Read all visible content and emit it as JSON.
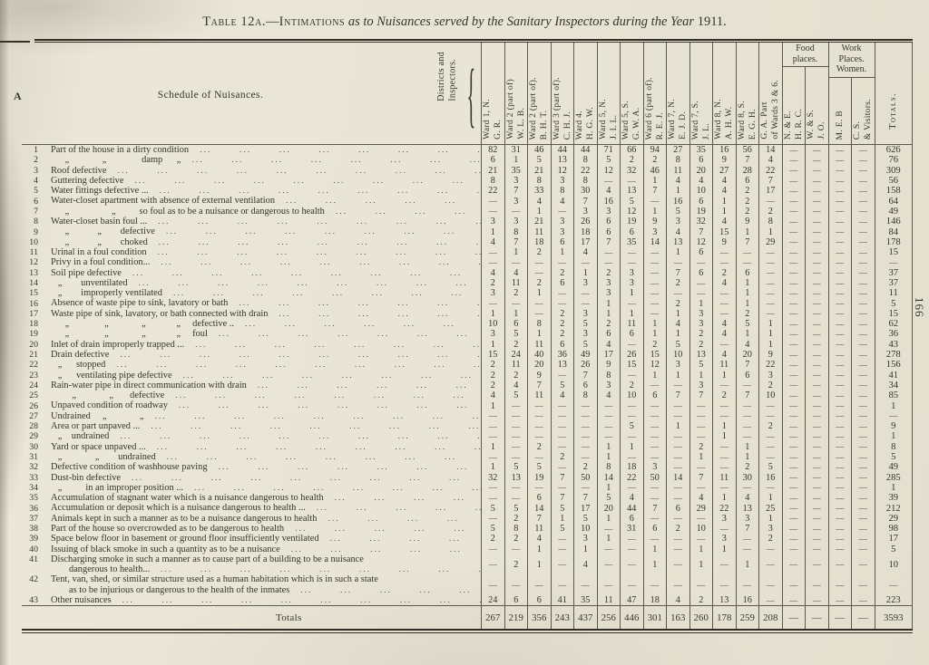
{
  "page": {
    "margin_letter": "A",
    "page_number": "166",
    "leader_unit": "..."
  },
  "title": {
    "table_no": "Table 12a.",
    "dash": "—",
    "subject": "Intimations",
    "description": "as to Nuisances served by the Sanitary Inspectors during the Year",
    "year": "1911."
  },
  "table": {
    "schedule_header": "Schedule of Nuisances.",
    "districts_header": "Districts and\nInspectors.",
    "brace_glyph": "{",
    "group_headers": {
      "food": "Food places.",
      "work": "Work\nPlaces.\nWomen."
    },
    "totals_header": "Totals.",
    "columns": [
      {
        "lines": [
          "Ward 1, N.",
          "G. R."
        ]
      },
      {
        "lines": [
          "Ward 2 (part of)",
          "W. L. B."
        ]
      },
      {
        "lines": [
          "Ward 2 (part of).",
          "B. H. T."
        ]
      },
      {
        "lines": [
          "Ward 3 (part of).",
          "C. H. J."
        ]
      },
      {
        "lines": [
          "Ward 4.",
          "H. G. W."
        ]
      },
      {
        "lines": [
          "Ward 5, N.",
          "J. I. L."
        ]
      },
      {
        "lines": [
          "Ward 5, S.",
          "G. W. A."
        ]
      },
      {
        "lines": [
          "Ward 6 (part of).",
          "R. E. J."
        ]
      },
      {
        "lines": [
          "Ward 7, N.",
          "E. J. D."
        ]
      },
      {
        "lines": [
          "Ward 7, S.",
          "J. L."
        ]
      },
      {
        "lines": [
          "Ward 8, N.",
          "A. H. W."
        ]
      },
      {
        "lines": [
          "Ward 8, S.",
          "E. G. H."
        ]
      },
      {
        "lines": [
          "G. A. Part",
          "of Wards 3 & 6."
        ]
      },
      {
        "lines": [
          "N. & E.",
          "H. R. C."
        ]
      },
      {
        "lines": [
          "W. & S.",
          "J. O."
        ]
      },
      {
        "lines": [
          "M. E. B"
        ]
      },
      {
        "lines": [
          "C. S.",
          "& Visitors."
        ]
      }
    ],
    "rows": [
      {
        "n": "1",
        "label": "Part of the house in a dirty condition",
        "values": [
          "82",
          "31",
          "46",
          "44",
          "44",
          "71",
          "66",
          "94",
          "27",
          "35",
          "16",
          "56",
          "14",
          "—",
          "—",
          "—",
          "—",
          "626"
        ]
      },
      {
        "n": "2",
        "label": "      „              „               damp      „",
        "values": [
          "6",
          "1",
          "5",
          "13",
          "8",
          "5",
          "2",
          "2",
          "8",
          "6",
          "9",
          "7",
          "4",
          "—",
          "—",
          "—",
          "—",
          "76"
        ]
      },
      {
        "n": "3",
        "label": "Roof defective",
        "values": [
          "21",
          "35",
          "21",
          "12",
          "22",
          "12",
          "32",
          "46",
          "11",
          "20",
          "27",
          "28",
          "22",
          "—",
          "—",
          "—",
          "—",
          "309"
        ]
      },
      {
        "n": "4",
        "label": "Guttering defective",
        "values": [
          "8",
          "3",
          "8",
          "3",
          "8",
          "—",
          "—",
          "1",
          "4",
          "4",
          "4",
          "6",
          "7",
          "—",
          "—",
          "—",
          "—",
          "56"
        ]
      },
      {
        "n": "5",
        "label": "Water fittings defective ...",
        "values": [
          "22",
          "7",
          "33",
          "8",
          "30",
          "4",
          "13",
          "7",
          "1",
          "10",
          "4",
          "2",
          "17",
          "—",
          "—",
          "—",
          "—",
          "158"
        ]
      },
      {
        "n": "6",
        "label": "Water-closet apartment with absence of external ventilation",
        "values": [
          "—",
          "3",
          "4",
          "4",
          "7",
          "16",
          "5",
          "—",
          "16",
          "6",
          "1",
          "2",
          "—",
          "—",
          "—",
          "—",
          "—",
          "64"
        ]
      },
      {
        "n": "7",
        "label": "      „                  „          so foul as to be a nuisance or dangerous to health",
        "values": [
          "—",
          "—",
          "1",
          "—",
          "3",
          "3",
          "12",
          "1",
          "5",
          "19",
          "1",
          "2",
          "2",
          "—",
          "—",
          "—",
          "—",
          "49"
        ]
      },
      {
        "n": "8",
        "label": "Water-closet basin foul ...",
        "values": [
          "3",
          "3",
          "21",
          "3",
          "26",
          "6",
          "19",
          "9",
          "3",
          "32",
          "4",
          "9",
          "8",
          "—",
          "—",
          "—",
          "—",
          "146"
        ]
      },
      {
        "n": "9",
        "label": "      „            „        defective",
        "values": [
          "1",
          "8",
          "11",
          "3",
          "18",
          "6",
          "6",
          "3",
          "4",
          "7",
          "15",
          "1",
          "1",
          "—",
          "—",
          "—",
          "—",
          "84"
        ]
      },
      {
        "n": "10",
        "label": "      „            „        choked",
        "values": [
          "4",
          "7",
          "18",
          "6",
          "17",
          "7",
          "35",
          "14",
          "13",
          "12",
          "9",
          "7",
          "29",
          "—",
          "—",
          "—",
          "—",
          "178"
        ]
      },
      {
        "n": "11",
        "label": "Urinal in a foul condition",
        "values": [
          "—",
          "1",
          "2",
          "1",
          "4",
          "—",
          "—",
          "—",
          "1",
          "6",
          "—",
          "—",
          "—",
          "—",
          "—",
          "—",
          "—",
          "15"
        ]
      },
      {
        "n": "12",
        "label": "Privy in a foul condition...",
        "values": [
          "—",
          "—",
          "—",
          "—",
          "—",
          "—",
          "—",
          "—",
          "—",
          "—",
          "—",
          "—",
          "—",
          "—",
          "—",
          "—",
          "—",
          "—"
        ]
      },
      {
        "n": "13",
        "label": "Soil pipe defective",
        "values": [
          "4",
          "4",
          "—",
          "2",
          "1",
          "2",
          "3",
          "—",
          "7",
          "6",
          "2",
          "6",
          "—",
          "—",
          "—",
          "—",
          "—",
          "37"
        ]
      },
      {
        "n": "14",
        "label": "   „        unventilated",
        "values": [
          "2",
          "11",
          "2",
          "6",
          "3",
          "3",
          "3",
          "—",
          "2",
          "—",
          "4",
          "1",
          "—",
          "—",
          "—",
          "—",
          "—",
          "37"
        ]
      },
      {
        "n": "15",
        "label": "   „        improperly ventilated",
        "values": [
          "3",
          "2",
          "1",
          "—",
          "—",
          "3",
          "1",
          "—",
          "—",
          "—",
          "—",
          "1",
          "—",
          "—",
          "—",
          "—",
          "—",
          "11"
        ]
      },
      {
        "n": "16",
        "label": "Absence of waste pipe to sink, lavatory or bath",
        "values": [
          "—",
          "—",
          "—",
          "—",
          "—",
          "1",
          "—",
          "—",
          "2",
          "1",
          "—",
          "1",
          "—",
          "—",
          "—",
          "—",
          "—",
          "5"
        ]
      },
      {
        "n": "17",
        "label": "Waste pipe of sink, lavatory, or bath connected with drain",
        "values": [
          "1",
          "1",
          "—",
          "2",
          "3",
          "1",
          "1",
          "—",
          "1",
          "3",
          "—",
          "2",
          "—",
          "—",
          "—",
          "—",
          "—",
          "15"
        ]
      },
      {
        "n": "18",
        "label": "      „               „              „             „     defective ..",
        "values": [
          "10",
          "6",
          "8",
          "2",
          "5",
          "2",
          "11",
          "1",
          "4",
          "3",
          "4",
          "5",
          "1",
          "—",
          "—",
          "—",
          "—",
          "62"
        ]
      },
      {
        "n": "19",
        "label": "      „               „              „             „     foul",
        "values": [
          "3",
          "5",
          "1",
          "2",
          "3",
          "6",
          "6",
          "1",
          "1",
          "2",
          "4",
          "1",
          "1",
          "—",
          "—",
          "—",
          "—",
          "36"
        ]
      },
      {
        "n": "20",
        "label": "Inlet of drain improperly trapped ...",
        "values": [
          "1",
          "2",
          "11",
          "6",
          "5",
          "4",
          "—",
          "2",
          "5",
          "2",
          "—",
          "4",
          "1",
          "—",
          "—",
          "—",
          "—",
          "43"
        ]
      },
      {
        "n": "21",
        "label": "Drain defective",
        "values": [
          "15",
          "24",
          "40",
          "36",
          "49",
          "17",
          "26",
          "15",
          "10",
          "13",
          "4",
          "20",
          "9",
          "—",
          "—",
          "—",
          "—",
          "278"
        ]
      },
      {
        "n": "22",
        "label": "   „      stopped",
        "values": [
          "2",
          "11",
          "20",
          "13",
          "26",
          "9",
          "15",
          "12",
          "3",
          "5",
          "11",
          "7",
          "22",
          "—",
          "—",
          "—",
          "—",
          "156"
        ]
      },
      {
        "n": "23",
        "label": "   „      ventilating pipe defective",
        "values": [
          "2",
          "2",
          "9",
          "—",
          "7",
          "8",
          "—",
          "1",
          "1",
          "1",
          "1",
          "6",
          "3",
          "—",
          "—",
          "—",
          "—",
          "41"
        ]
      },
      {
        "n": "24",
        "label": "Rain-water pipe in direct communication with drain",
        "values": [
          "2",
          "4",
          "7",
          "5",
          "6",
          "3",
          "2",
          "—",
          "—",
          "3",
          "—",
          "—",
          "2",
          "—",
          "—",
          "—",
          "—",
          "34"
        ]
      },
      {
        "n": "25",
        "label": "         „              „       defective",
        "values": [
          "4",
          "5",
          "11",
          "4",
          "8",
          "4",
          "10",
          "6",
          "7",
          "7",
          "2",
          "7",
          "10",
          "—",
          "—",
          "—",
          "—",
          "85"
        ]
      },
      {
        "n": "26",
        "label": "Unpaved condition of roadway",
        "values": [
          "1",
          "—",
          "—",
          "—",
          "—",
          "—",
          "—",
          "—",
          "—",
          "—",
          "—",
          "—",
          "—",
          "—",
          "—",
          "—",
          "—",
          "1"
        ]
      },
      {
        "n": "27",
        "label": "Undrained     „              „",
        "values": [
          "—",
          "—",
          "—",
          "—",
          "—",
          "—",
          "—",
          "—",
          "—",
          "—",
          "—",
          "—",
          "—",
          "—",
          "—",
          "—",
          "—",
          "—"
        ]
      },
      {
        "n": "28",
        "label": "Area or part unpaved ...",
        "values": [
          "—",
          "—",
          "—",
          "—",
          "—",
          "—",
          "5",
          "—",
          "1",
          "—",
          "1",
          "—",
          "2",
          "—",
          "—",
          "—",
          "—",
          "9"
        ]
      },
      {
        "n": "29",
        "label": "   „    undrained",
        "values": [
          "—",
          "—",
          "—",
          "—",
          "—",
          "—",
          "—",
          "—",
          "—",
          "—",
          "1",
          "—",
          "—",
          "—",
          "—",
          "—",
          "—",
          "1"
        ]
      },
      {
        "n": "30",
        "label": "Yard or space unpaved ...",
        "values": [
          "1",
          "—",
          "2",
          "—",
          "—",
          "1",
          "1",
          "—",
          "—",
          "2",
          "—",
          "1",
          "—",
          "—",
          "—",
          "—",
          "—",
          "8"
        ]
      },
      {
        "n": "31",
        "label": "   „              „        undrained",
        "values": [
          "—",
          "—",
          "—",
          "2",
          "—",
          "1",
          "—",
          "—",
          "—",
          "1",
          "—",
          "1",
          "—",
          "—",
          "—",
          "—",
          "—",
          "5"
        ]
      },
      {
        "n": "32",
        "label": "Defective condition of washhouse paving",
        "values": [
          "1",
          "5",
          "5",
          "—",
          "2",
          "8",
          "18",
          "3",
          "—",
          "—",
          "—",
          "2",
          "5",
          "—",
          "—",
          "—",
          "—",
          "49"
        ]
      },
      {
        "n": "33",
        "label": "Dust-bin defective",
        "values": [
          "32",
          "13",
          "19",
          "7",
          "50",
          "14",
          "22",
          "50",
          "14",
          "7",
          "11",
          "30",
          "16",
          "—",
          "—",
          "—",
          "—",
          "285"
        ]
      },
      {
        "n": "34",
        "label": "   „          in an improper position ...",
        "values": [
          "—",
          "—",
          "—",
          "—",
          "—",
          "1",
          "—",
          "—",
          "—",
          "—",
          "—",
          "—",
          "—",
          "—",
          "—",
          "—",
          "—",
          "1"
        ]
      },
      {
        "n": "35",
        "label": "Accumulation of stagnant water which is a nuisance dangerous to health",
        "values": [
          "—",
          "—",
          "6",
          "7",
          "7",
          "5",
          "4",
          "—",
          "—",
          "4",
          "1",
          "4",
          "1",
          "—",
          "—",
          "—",
          "—",
          "39"
        ]
      },
      {
        "n": "36",
        "label": "Accumulation or deposit which is a nuisance dangerous to health ...",
        "values": [
          "5",
          "5",
          "14",
          "5",
          "17",
          "20",
          "44",
          "7",
          "6",
          "29",
          "22",
          "13",
          "25",
          "—",
          "—",
          "—",
          "—",
          "212"
        ]
      },
      {
        "n": "37",
        "label": "Animals kept in such a manner as to be a nuisance dangerous to health",
        "values": [
          "—",
          "2",
          "7",
          "1",
          "5",
          "1",
          "6",
          "—",
          "—",
          "—",
          "3",
          "3",
          "1",
          "—",
          "—",
          "—",
          "—",
          "29"
        ]
      },
      {
        "n": "38",
        "label": "Part of the house so overcrowded as to be dangerous to health",
        "values": [
          "5",
          "8",
          "11",
          "5",
          "10",
          "—",
          "31",
          "6",
          "2",
          "10",
          "—",
          "7",
          "3",
          "—",
          "—",
          "—",
          "—",
          "98"
        ]
      },
      {
        "n": "39",
        "label": "Space below floor in basement or ground floor insufficiently ventilated",
        "values": [
          "2",
          "2",
          "4",
          "—",
          "3",
          "1",
          "—",
          "—",
          "—",
          "—",
          "3",
          "—",
          "2",
          "—",
          "—",
          "—",
          "—",
          "17"
        ]
      },
      {
        "n": "40",
        "label": "Issuing of black smoke in such a quantity as to be a nuisance",
        "values": [
          "—",
          "—",
          "1",
          "—",
          "1",
          "—",
          "—",
          "1",
          "—",
          "1",
          "1",
          "—",
          "—",
          "—",
          "—",
          "—",
          "—",
          "5"
        ]
      },
      {
        "n": "41",
        "label": "Discharging smoke in such a manner as to cause part of a building to be a nuisance",
        "label2": "dangerous to health...",
        "values": [
          "—",
          "2",
          "1",
          "—",
          "4",
          "—",
          "—",
          "1",
          "—",
          "1",
          "—",
          "1",
          "—",
          "—",
          "—",
          "—",
          "—",
          "10"
        ]
      },
      {
        "n": "42",
        "label": "Tent, van, shed, or similar structure used as a human habitation which is in such a state",
        "label2": "as to be injurious or dangerous to the health of the inmates",
        "values": [
          "—",
          "—",
          "—",
          "—",
          "—",
          "—",
          "—",
          "—",
          "—",
          "—",
          "—",
          "—",
          "—",
          "—",
          "—",
          "—",
          "—",
          "—"
        ]
      },
      {
        "n": "43",
        "label": "Other nuisances",
        "values": [
          "24",
          "6",
          "6",
          "41",
          "35",
          "11",
          "47",
          "18",
          "4",
          "2",
          "13",
          "16",
          "—",
          "—",
          "—",
          "—",
          "—",
          "223"
        ]
      }
    ],
    "totals_label": "Totals",
    "totals": [
      "267",
      "219",
      "356",
      "243",
      "437",
      "256",
      "446",
      "301",
      "163",
      "260",
      "178",
      "259",
      "208",
      "—",
      "—",
      "—",
      "—",
      "3593"
    ]
  }
}
